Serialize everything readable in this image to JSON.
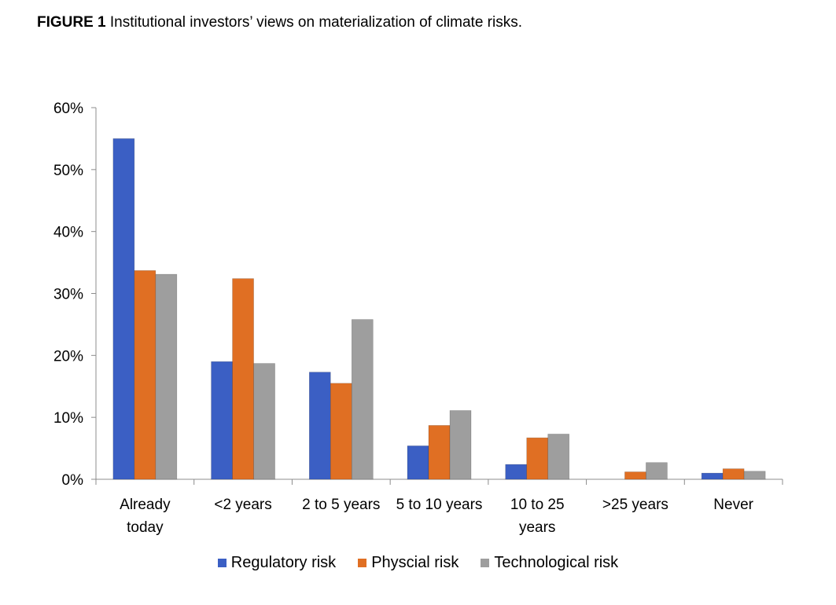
{
  "caption": {
    "label": "FIGURE 1",
    "text": "Institutional investors’ views on materialization of climate risks."
  },
  "chart_data": {
    "type": "bar",
    "title": "",
    "xlabel": "",
    "ylabel": "",
    "ylim": [
      0,
      60
    ],
    "yticks": [
      "0%",
      "10%",
      "20%",
      "30%",
      "40%",
      "50%",
      "60%"
    ],
    "grid": false,
    "legend_position": "bottom",
    "categories": [
      [
        "Already",
        "today"
      ],
      [
        "<2 years"
      ],
      [
        "2 to 5 years"
      ],
      [
        "5 to 10 years"
      ],
      [
        "10 to 25",
        "years"
      ],
      [
        ">25 years"
      ],
      [
        "Never"
      ]
    ],
    "series": [
      {
        "name": "Regulatory risk",
        "color": "#3b5fc4",
        "values": [
          55.0,
          19.0,
          17.3,
          5.4,
          2.4,
          0.0,
          1.0
        ]
      },
      {
        "name": "Physcial risk",
        "color": "#e06f23",
        "values": [
          33.7,
          32.4,
          15.5,
          8.7,
          6.7,
          1.2,
          1.7
        ]
      },
      {
        "name": "Technological risk",
        "color": "#9e9e9e",
        "values": [
          33.1,
          18.7,
          25.8,
          11.1,
          7.3,
          2.7,
          1.3
        ]
      }
    ]
  }
}
